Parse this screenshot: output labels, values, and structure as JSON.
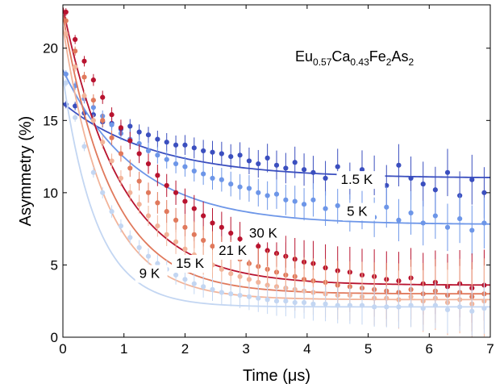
{
  "chart_data": {
    "type": "scatter",
    "title": "",
    "xlabel": "Time (μs)",
    "ylabel": "Asymmetry (%)",
    "xlim": [
      0,
      7
    ],
    "ylim": [
      0,
      23
    ],
    "xticks": [
      0,
      1,
      2,
      3,
      4,
      5,
      6,
      7
    ],
    "yticks": [
      0,
      5,
      10,
      15,
      20
    ],
    "grid": false,
    "legend": "none",
    "annotation": {
      "base1": "Eu",
      "sub1": "0.57",
      "base2": "Ca",
      "sub2": "0.43",
      "base3": "Fe",
      "sub3": "2",
      "base4": "As",
      "sub4": "2"
    },
    "series": [
      {
        "label": "1.5 K",
        "color": "#3b4fbf",
        "fit": {
          "A0": 16.2,
          "Ainf": 11.0,
          "tau": 1.5
        },
        "points": [
          [
            0.05,
            16.1
          ],
          [
            0.2,
            16.0
          ],
          [
            0.35,
            15.5
          ],
          [
            0.5,
            15.4
          ],
          [
            0.65,
            14.9
          ],
          [
            0.8,
            14.8
          ],
          [
            0.95,
            14.4
          ],
          [
            1.1,
            14.6
          ],
          [
            1.25,
            14.2
          ],
          [
            1.4,
            14.0
          ],
          [
            1.55,
            13.7
          ],
          [
            1.7,
            13.5
          ],
          [
            1.85,
            13.3
          ],
          [
            2.0,
            13.3
          ],
          [
            2.15,
            13.1
          ],
          [
            2.3,
            12.9
          ],
          [
            2.45,
            12.8
          ],
          [
            2.6,
            12.7
          ],
          [
            2.75,
            12.5
          ],
          [
            2.9,
            12.6
          ],
          [
            3.05,
            12.2
          ],
          [
            3.2,
            12.0
          ],
          [
            3.35,
            12.4
          ],
          [
            3.5,
            11.9
          ],
          [
            3.65,
            11.7
          ],
          [
            3.8,
            12.1
          ],
          [
            3.95,
            11.6
          ],
          [
            4.1,
            11.4
          ],
          [
            4.3,
            11.0
          ],
          [
            4.5,
            11.8
          ],
          [
            4.7,
            10.8
          ],
          [
            4.9,
            11.6
          ],
          [
            5.1,
            11.2
          ],
          [
            5.3,
            10.5
          ],
          [
            5.5,
            11.9
          ],
          [
            5.7,
            11.0
          ],
          [
            5.9,
            10.6
          ],
          [
            6.1,
            10.2
          ],
          [
            6.3,
            11.4
          ],
          [
            6.5,
            9.8
          ],
          [
            6.7,
            10.9
          ],
          [
            6.9,
            10.0
          ]
        ]
      },
      {
        "label": "5 K",
        "color": "#6d96e8",
        "fit": {
          "A0": 18.5,
          "Ainf": 7.8,
          "tau": 1.2
        },
        "points": [
          [
            0.05,
            18.2
          ],
          [
            0.2,
            17.4
          ],
          [
            0.35,
            16.5
          ],
          [
            0.5,
            15.9
          ],
          [
            0.65,
            15.3
          ],
          [
            0.8,
            14.7
          ],
          [
            0.95,
            14.1
          ],
          [
            1.1,
            13.7
          ],
          [
            1.25,
            13.4
          ],
          [
            1.4,
            12.9
          ],
          [
            1.55,
            12.6
          ],
          [
            1.7,
            12.3
          ],
          [
            1.85,
            12.0
          ],
          [
            2.0,
            11.8
          ],
          [
            2.15,
            11.5
          ],
          [
            2.3,
            11.3
          ],
          [
            2.45,
            11.0
          ],
          [
            2.6,
            10.9
          ],
          [
            2.75,
            10.6
          ],
          [
            2.9,
            10.4
          ],
          [
            3.05,
            10.3
          ],
          [
            3.2,
            10.0
          ],
          [
            3.35,
            9.8
          ],
          [
            3.5,
            9.9
          ],
          [
            3.65,
            9.5
          ],
          [
            3.8,
            9.4
          ],
          [
            3.95,
            9.2
          ],
          [
            4.1,
            9.5
          ],
          [
            4.3,
            8.9
          ],
          [
            4.5,
            9.1
          ],
          [
            4.7,
            8.6
          ],
          [
            4.9,
            8.8
          ],
          [
            5.1,
            8.3
          ],
          [
            5.3,
            9.0
          ],
          [
            5.5,
            8.1
          ],
          [
            5.7,
            8.6
          ],
          [
            5.9,
            7.9
          ],
          [
            6.1,
            8.4
          ],
          [
            6.3,
            7.6
          ],
          [
            6.5,
            8.2
          ],
          [
            6.7,
            7.4
          ],
          [
            6.9,
            7.9
          ]
        ]
      },
      {
        "label": "30 K",
        "color": "#b8132f",
        "fit": {
          "A0": 22.8,
          "Ainf": 3.6,
          "tau": 0.95
        },
        "points": [
          [
            0.05,
            22.5
          ],
          [
            0.2,
            20.6
          ],
          [
            0.35,
            19.1
          ],
          [
            0.5,
            17.8
          ],
          [
            0.65,
            16.6
          ],
          [
            0.8,
            15.4
          ],
          [
            0.95,
            14.5
          ],
          [
            1.1,
            13.6
          ],
          [
            1.25,
            12.7
          ],
          [
            1.4,
            12.0
          ],
          [
            1.55,
            11.2
          ],
          [
            1.7,
            10.5
          ],
          [
            1.85,
            10.0
          ],
          [
            2.0,
            9.4
          ],
          [
            2.15,
            8.9
          ],
          [
            2.3,
            8.4
          ],
          [
            2.45,
            7.9
          ],
          [
            2.6,
            7.6
          ],
          [
            2.75,
            7.2
          ],
          [
            2.9,
            6.8
          ],
          [
            3.05,
            6.5
          ],
          [
            3.2,
            6.3
          ],
          [
            3.35,
            6.0
          ],
          [
            3.5,
            5.8
          ],
          [
            3.65,
            5.6
          ],
          [
            3.8,
            5.4
          ],
          [
            3.95,
            5.2
          ],
          [
            4.1,
            5.1
          ],
          [
            4.3,
            4.8
          ],
          [
            4.5,
            4.6
          ],
          [
            4.7,
            4.5
          ],
          [
            4.9,
            4.3
          ],
          [
            5.1,
            4.2
          ],
          [
            5.3,
            4.0
          ],
          [
            5.5,
            3.9
          ],
          [
            5.7,
            4.1
          ],
          [
            5.9,
            3.7
          ],
          [
            6.1,
            3.8
          ],
          [
            6.3,
            3.5
          ],
          [
            6.5,
            3.7
          ],
          [
            6.7,
            3.4
          ],
          [
            6.9,
            3.6
          ]
        ]
      },
      {
        "label": "21 K",
        "color": "#e0795c",
        "fit": {
          "A0": 22.3,
          "Ainf": 3.0,
          "tau": 0.8
        },
        "points": [
          [
            0.05,
            21.9
          ],
          [
            0.2,
            19.8
          ],
          [
            0.35,
            18.0
          ],
          [
            0.5,
            16.4
          ],
          [
            0.65,
            15.0
          ],
          [
            0.8,
            13.8
          ],
          [
            0.95,
            12.7
          ],
          [
            1.1,
            11.7
          ],
          [
            1.25,
            10.8
          ],
          [
            1.4,
            10.0
          ],
          [
            1.55,
            9.3
          ],
          [
            1.7,
            8.7
          ],
          [
            1.85,
            8.1
          ],
          [
            2.0,
            7.6
          ],
          [
            2.15,
            7.1
          ],
          [
            2.3,
            6.7
          ],
          [
            2.45,
            6.3
          ],
          [
            2.6,
            5.9
          ],
          [
            2.75,
            5.6
          ],
          [
            2.9,
            5.4
          ],
          [
            3.05,
            5.1
          ],
          [
            3.2,
            4.9
          ],
          [
            3.35,
            4.7
          ],
          [
            3.5,
            4.5
          ],
          [
            3.65,
            4.3
          ],
          [
            3.8,
            4.2
          ],
          [
            3.95,
            4.0
          ],
          [
            4.1,
            3.9
          ],
          [
            4.3,
            3.8
          ],
          [
            4.5,
            3.6
          ],
          [
            4.7,
            3.5
          ],
          [
            4.9,
            3.4
          ],
          [
            5.1,
            3.3
          ],
          [
            5.3,
            3.2
          ],
          [
            5.5,
            3.1
          ],
          [
            5.7,
            3.3
          ],
          [
            5.9,
            3.0
          ],
          [
            6.1,
            3.2
          ],
          [
            6.3,
            2.9
          ],
          [
            6.5,
            3.1
          ],
          [
            6.7,
            2.8
          ],
          [
            6.9,
            3.0
          ]
        ]
      },
      {
        "label": "15 K",
        "color": "#f2b49a",
        "fit": {
          "A0": 21.5,
          "Ainf": 2.6,
          "tau": 0.7
        },
        "points": [
          [
            0.05,
            21.0
          ],
          [
            0.2,
            18.7
          ],
          [
            0.35,
            16.7
          ],
          [
            0.5,
            15.0
          ],
          [
            0.65,
            13.5
          ],
          [
            0.8,
            12.2
          ],
          [
            0.95,
            11.0
          ],
          [
            1.1,
            10.0
          ],
          [
            1.25,
            9.2
          ],
          [
            1.4,
            8.4
          ],
          [
            1.55,
            7.7
          ],
          [
            1.7,
            7.1
          ],
          [
            1.85,
            6.6
          ],
          [
            2.0,
            6.1
          ],
          [
            2.15,
            5.7
          ],
          [
            2.3,
            5.3
          ],
          [
            2.45,
            5.0
          ],
          [
            2.6,
            4.7
          ],
          [
            2.75,
            4.4
          ],
          [
            2.9,
            4.2
          ],
          [
            3.05,
            4.0
          ],
          [
            3.2,
            3.8
          ],
          [
            3.35,
            3.6
          ],
          [
            3.5,
            3.5
          ],
          [
            3.65,
            3.4
          ],
          [
            3.8,
            3.3
          ],
          [
            3.95,
            3.2
          ],
          [
            4.1,
            3.1
          ],
          [
            4.3,
            3.0
          ],
          [
            4.5,
            2.9
          ],
          [
            4.7,
            2.9
          ],
          [
            4.9,
            2.8
          ],
          [
            5.1,
            2.7
          ],
          [
            5.3,
            2.7
          ],
          [
            5.5,
            2.6
          ],
          [
            5.7,
            2.8
          ],
          [
            5.9,
            2.5
          ],
          [
            6.1,
            2.7
          ],
          [
            6.3,
            2.4
          ],
          [
            6.5,
            2.6
          ],
          [
            6.7,
            2.3
          ],
          [
            6.9,
            2.5
          ]
        ]
      },
      {
        "label": "9 K",
        "color": "#c3d6f2",
        "fit": {
          "A0": 18.0,
          "Ainf": 2.1,
          "tau": 0.55
        },
        "points": [
          [
            0.05,
            17.6
          ],
          [
            0.2,
            15.2
          ],
          [
            0.35,
            13.2
          ],
          [
            0.5,
            11.4
          ],
          [
            0.65,
            10.0
          ],
          [
            0.8,
            8.7
          ],
          [
            0.95,
            7.7
          ],
          [
            1.1,
            6.9
          ],
          [
            1.25,
            6.2
          ],
          [
            1.4,
            5.6
          ],
          [
            1.55,
            5.1
          ],
          [
            1.7,
            4.7
          ],
          [
            1.85,
            4.3
          ],
          [
            2.0,
            4.0
          ],
          [
            2.15,
            3.7
          ],
          [
            2.3,
            3.5
          ],
          [
            2.45,
            3.3
          ],
          [
            2.6,
            3.1
          ],
          [
            2.75,
            3.0
          ],
          [
            2.9,
            2.9
          ],
          [
            3.05,
            2.8
          ],
          [
            3.2,
            2.7
          ],
          [
            3.35,
            2.6
          ],
          [
            3.5,
            2.5
          ],
          [
            3.65,
            2.5
          ],
          [
            3.8,
            2.4
          ],
          [
            3.95,
            2.4
          ],
          [
            4.1,
            2.3
          ],
          [
            4.3,
            2.3
          ],
          [
            4.5,
            2.2
          ],
          [
            4.7,
            2.2
          ],
          [
            4.9,
            2.2
          ],
          [
            5.1,
            2.1
          ],
          [
            5.3,
            2.1
          ],
          [
            5.5,
            2.1
          ],
          [
            5.7,
            2.2
          ],
          [
            5.9,
            2.0
          ],
          [
            6.1,
            2.2
          ],
          [
            6.3,
            1.9
          ],
          [
            6.5,
            2.1
          ],
          [
            6.7,
            1.8
          ],
          [
            6.9,
            2.0
          ]
        ]
      }
    ]
  }
}
